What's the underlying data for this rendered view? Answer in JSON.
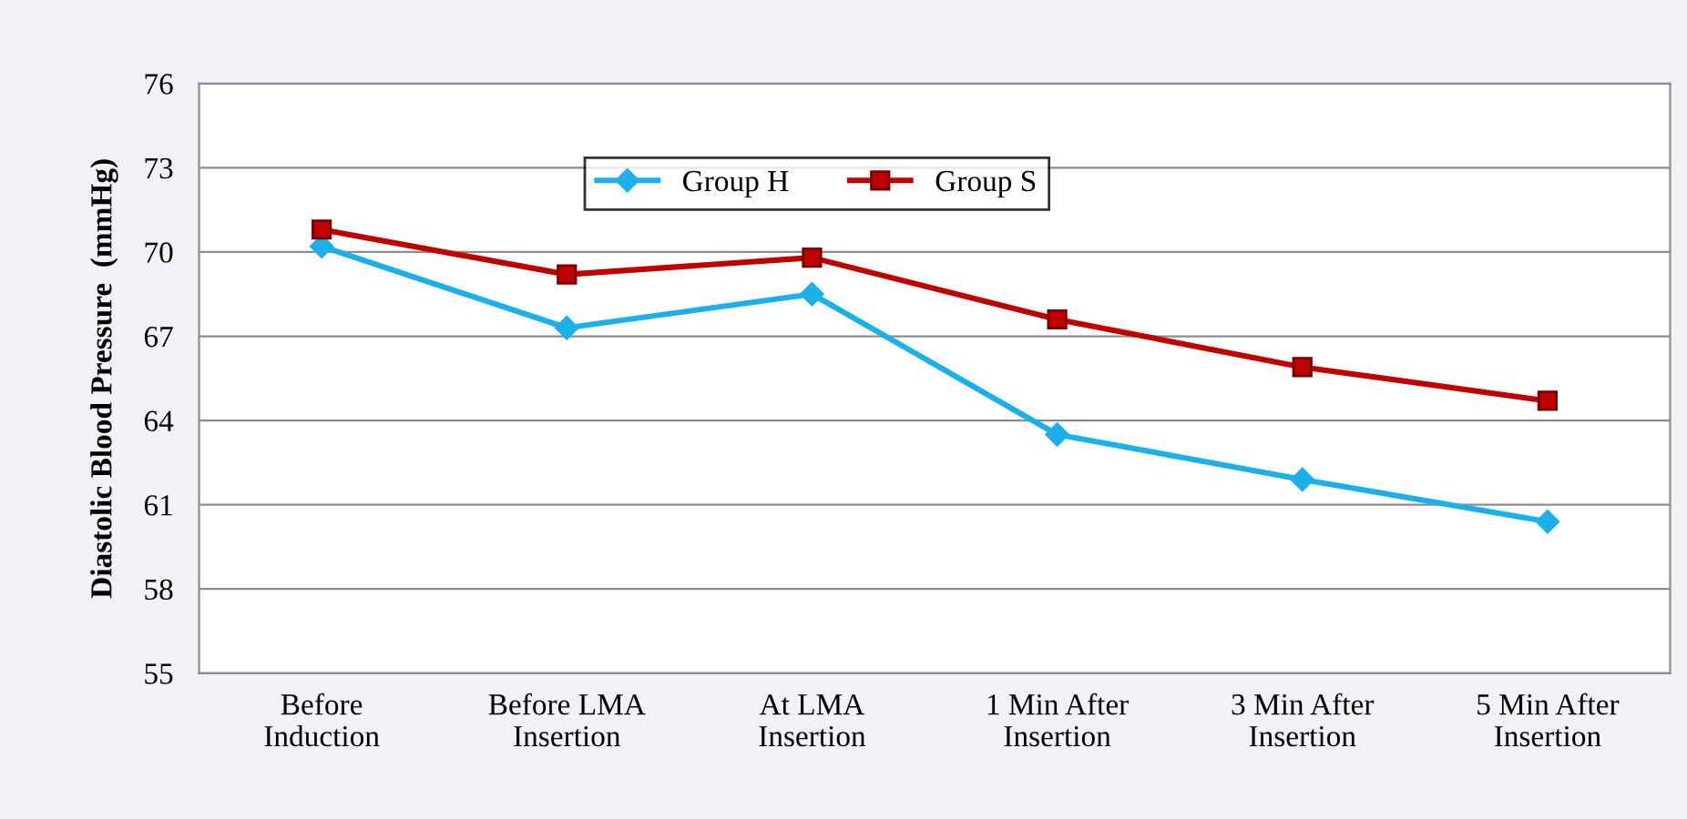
{
  "chart_data": {
    "type": "line",
    "ylabel": "Diastolic Blood Pressure  (mmHg)",
    "categories": [
      "Before\nInduction",
      "Before LMA\nInsertion",
      "At LMA\nInsertion",
      "1 Min After\nInsertion",
      "3 Min After\nInsertion",
      "5 Min After\nInsertion"
    ],
    "series": [
      {
        "name": "Group H",
        "color": "#1cb0ea",
        "values": [
          70.2,
          67.3,
          68.5,
          63.5,
          61.9,
          60.4
        ],
        "marker": "diamond"
      },
      {
        "name": "Group S",
        "color": "#c00000",
        "values": [
          70.8,
          69.2,
          69.8,
          67.6,
          65.9,
          64.7
        ],
        "marker": "square"
      }
    ],
    "ylim": [
      55,
      76
    ],
    "yticks": [
      55,
      58,
      61,
      64,
      67,
      70,
      73,
      76
    ],
    "grid": "y",
    "legend": "top",
    "line_style": "solid"
  }
}
